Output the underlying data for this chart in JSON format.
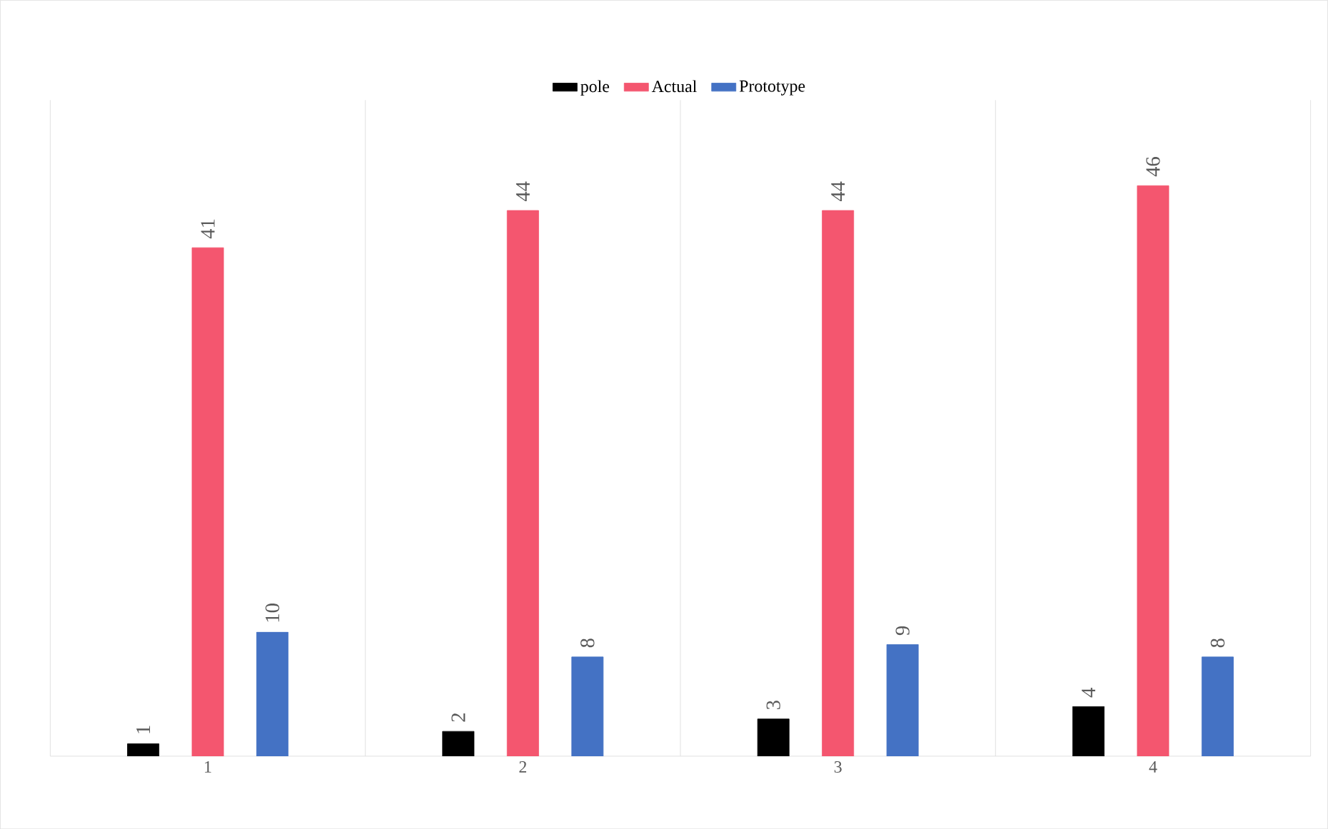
{
  "chart_data": {
    "type": "bar",
    "categories": [
      "1",
      "2",
      "3",
      "4"
    ],
    "series": [
      {
        "name": "pole",
        "color": "#000000",
        "values": [
          1,
          2,
          3,
          4
        ]
      },
      {
        "name": "Actual",
        "color": "#f4566f",
        "values": [
          41,
          44,
          44,
          46
        ]
      },
      {
        "name": "Prototype",
        "color": "#4472c4",
        "values": [
          10,
          8,
          9,
          8
        ]
      }
    ],
    "data_labels": true,
    "grid": "x",
    "legend": "top"
  }
}
